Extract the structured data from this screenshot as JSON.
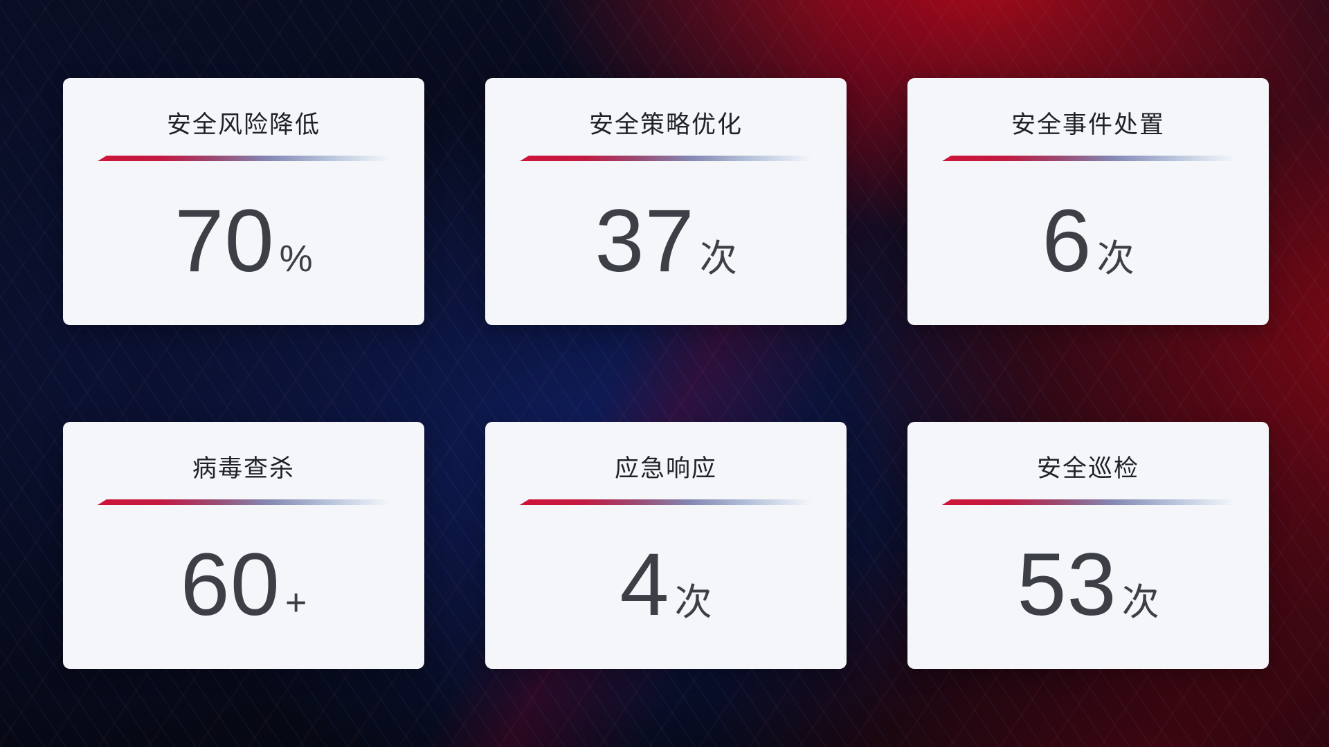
{
  "cards": [
    {
      "title": "安全风险降低",
      "value": "70",
      "suffix": "%"
    },
    {
      "title": "安全策略优化",
      "value": "37",
      "suffix": "次"
    },
    {
      "title": "安全事件处置",
      "value": "6",
      "suffix": "次"
    },
    {
      "title": "病毒查杀",
      "value": "60",
      "suffix": "+"
    },
    {
      "title": "应急响应",
      "value": "4",
      "suffix": "次"
    },
    {
      "title": "安全巡检",
      "value": "53",
      "suffix": "次"
    }
  ],
  "colors": {
    "card_background": "#f4f6f9",
    "title_text": "#1e2126",
    "value_text": "#3c4046",
    "divider_start": "#cf1439",
    "divider_mid": "#8486b2",
    "divider_end": "#dde4f0",
    "background_red_glow": "#c40a18",
    "background_blue_glow": "#112068",
    "background_dark": "#06080f"
  }
}
